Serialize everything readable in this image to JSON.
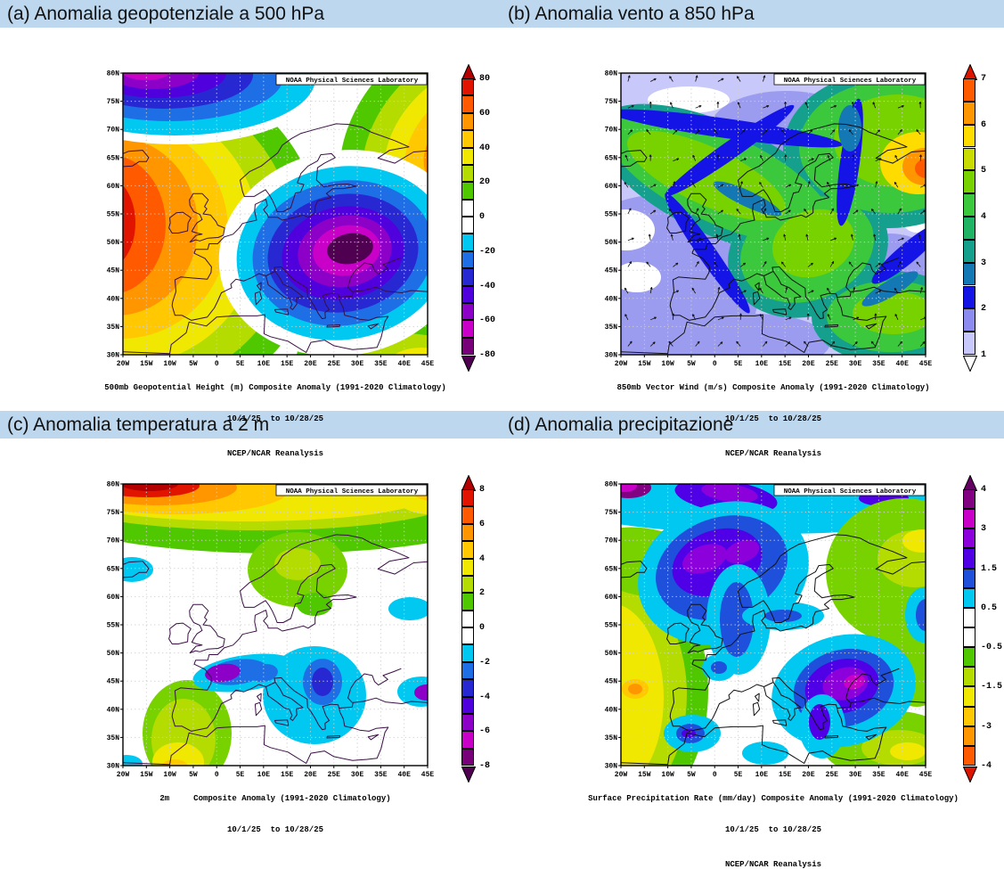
{
  "colors": {
    "header_bg": "#bdd7ee",
    "map_background": "#ffffff",
    "wind_base": "#c8c8fa",
    "coast_dark_purple": "#3a0f45",
    "coast_black": "#111111"
  },
  "map_common": {
    "credit": "NOAA Physical Sciences Laboratory",
    "lat_labels": [
      "80N",
      "75N",
      "70N",
      "65N",
      "60N",
      "55N",
      "50N",
      "45N",
      "40N",
      "35N",
      "30N"
    ],
    "lon_labels": [
      "20W",
      "15W",
      "10W",
      "5W",
      "0",
      "5E",
      "10E",
      "15E",
      "20E",
      "25E",
      "30E",
      "35E",
      "40E",
      "45E"
    ]
  },
  "panels": [
    {
      "id": "a",
      "title": "(a) Anomalia geopotenziale a 500 hPa",
      "captions": [
        "500mb Geopotential Height (m) Composite Anomaly (1991-2020 Climatology)",
        "10/1/25  to 10/28/25",
        "NCEP/NCAR Reanalysis"
      ],
      "colorbar": {
        "labels": [
          "80",
          "60",
          "40",
          "20",
          "0",
          "-20",
          "-40",
          "-60",
          "-80"
        ],
        "blocks": [
          "#e11400",
          "#ff5a00",
          "#ff9600",
          "#ffc800",
          "#f0e800",
          "#b4dc00",
          "#50c800",
          "#ffffff",
          "#ffffff",
          "#00c8f0",
          "#1e6ee6",
          "#2828d2",
          "#5000dc",
          "#8c00c8",
          "#c800c8",
          "#780078"
        ],
        "arrow_top": "#b40000",
        "arrow_bottom": "#500050"
      }
    },
    {
      "id": "b",
      "title": "(b) Anomalia vento a 850 hPa",
      "captions": [
        "850mb Vector Wind (m/s) Composite Anomaly (1991-2020 Climatology)",
        "10/1/25  to 10/28/25",
        "NCEP/NCAR Reanalysis"
      ],
      "colorbar": {
        "labels": [
          "7",
          "6",
          "5",
          "4",
          "3",
          "2",
          "1"
        ],
        "blocks": [
          "#ff5a00",
          "#ff9600",
          "#ffdc00",
          "#c8dc00",
          "#78d200",
          "#3cc83c",
          "#1eb464",
          "#14a08c",
          "#1478b4",
          "#1414e6",
          "#8c8cf0",
          "#c8c8fa"
        ],
        "arrow_top": "#dc1400",
        "arrow_bottom": "#ffffff"
      }
    },
    {
      "id": "c",
      "title": "(c) Anomalia temperatura a 2 m",
      "captions": [
        "2m     Composite Anomaly (1991-2020 Climatology)",
        "10/1/25  to 10/28/25"
      ],
      "colorbar": {
        "labels": [
          "8",
          "6",
          "4",
          "2",
          "0",
          "-2",
          "-4",
          "-6",
          "-8"
        ],
        "blocks": [
          "#e11400",
          "#ff5a00",
          "#ff9600",
          "#ffc800",
          "#f0e800",
          "#b4dc00",
          "#50c800",
          "#ffffff",
          "#ffffff",
          "#00c8f0",
          "#1e6ee6",
          "#2828d2",
          "#5000dc",
          "#8c00c8",
          "#c800c8",
          "#780078"
        ],
        "arrow_top": "#b40000",
        "arrow_bottom": "#500050"
      }
    },
    {
      "id": "d",
      "title": "(d) Anomalia precipitazione",
      "captions": [
        "Surface Precipitation Rate (mm/day) Composite Anomaly (1991-2020 Climatology)",
        "10/1/25  to 10/28/25",
        "NCEP/NCAR Reanalysis"
      ],
      "colorbar": {
        "labels": [
          "4",
          "3",
          "1.5",
          "0.5",
          "-0.5",
          "-1.5",
          "-3",
          "-4"
        ],
        "blocks": [
          "#820082",
          "#c800c8",
          "#8c00dc",
          "#5000e6",
          "#1e50dc",
          "#00c8f0",
          "#ffffff",
          "#ffffff",
          "#50c800",
          "#b4dc00",
          "#f0e800",
          "#ffc800",
          "#ff9600",
          "#ff5a00"
        ],
        "arrow_top": "#640064",
        "arrow_bottom": "#dc1400"
      }
    }
  ]
}
